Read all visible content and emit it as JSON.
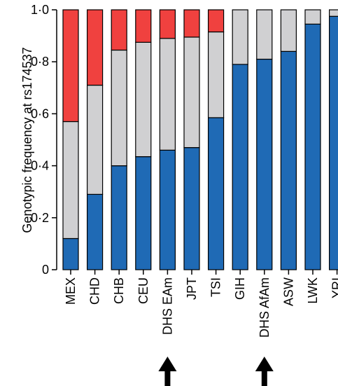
{
  "chart_data": {
    "type": "bar",
    "stacked": true,
    "ylabel": "Genotypic frequency at rs174537",
    "ylim": [
      0,
      1
    ],
    "yticks": [
      {
        "value": 0,
        "label": "0"
      },
      {
        "value": 0.2,
        "label": "0·2"
      },
      {
        "value": 0.4,
        "label": "0·4"
      },
      {
        "value": 0.6,
        "label": "0·6"
      },
      {
        "value": 0.8,
        "label": "0·8"
      },
      {
        "value": 1.0,
        "label": "1·0"
      }
    ],
    "categories": [
      "MEX",
      "CHD",
      "CHB",
      "CEU",
      "DHS EAm",
      "JPT",
      "TSI",
      "GIH",
      "DHS AfAm",
      "ASW",
      "LWK",
      "YRI"
    ],
    "series": [
      {
        "color": "#1f6ab5",
        "values": [
          0.12,
          0.29,
          0.4,
          0.435,
          0.46,
          0.47,
          0.585,
          0.79,
          0.81,
          0.84,
          0.945,
          0.975
        ]
      },
      {
        "color": "#d0d0d2",
        "values": [
          0.45,
          0.42,
          0.445,
          0.44,
          0.43,
          0.425,
          0.33,
          0.21,
          0.19,
          0.16,
          0.055,
          0.025
        ]
      },
      {
        "color": "#f0413f",
        "values": [
          0.43,
          0.29,
          0.155,
          0.125,
          0.11,
          0.105,
          0.085,
          0.0,
          0.0,
          0.0,
          0.0,
          0.0
        ]
      }
    ],
    "highlighted": [
      "DHS EAm",
      "DHS AfAm"
    ],
    "grid": false,
    "legend": "none"
  },
  "annotations": {
    "marker_icon": "up-arrow-icon"
  }
}
